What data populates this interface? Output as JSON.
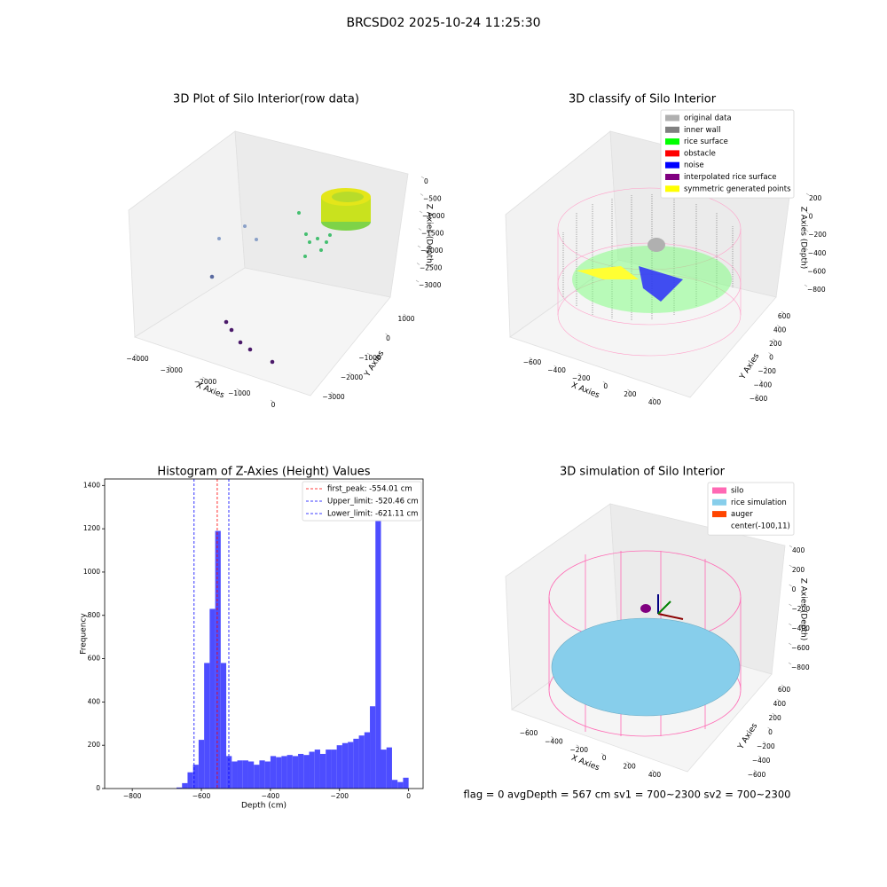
{
  "title": "BRCSD02 2025-10-24 11:25:30",
  "footer": "flag = 0     avgDepth = 567 cm  sv1 = 700~2300  sv2 = 700~2300",
  "chart_data": [
    {
      "type": "3d",
      "title": "3D Plot of Silo Interior(row data)",
      "xlabel": "X Axies",
      "ylabel": "Y Axies",
      "zlabel": "Z Axies (Depth)",
      "xticks": [
        {
          "value": -4000,
          "label": "−4000"
        },
        {
          "value": -3000,
          "label": "−3000"
        },
        {
          "value": -2000,
          "label": "−2000"
        },
        {
          "value": -1000,
          "label": "−1000"
        },
        0
      ],
      "yticks": [
        {
          "value": -3000,
          "label": "−3000"
        },
        {
          "value": -2000,
          "label": "−2000"
        },
        {
          "value": -1000,
          "label": "−1000"
        },
        0,
        1000
      ],
      "zticks": [
        0,
        {
          "value": -500,
          "label": "−500"
        },
        {
          "value": -1000,
          "label": "−1000"
        },
        {
          "value": -1500,
          "label": "−1500"
        },
        {
          "value": -2000,
          "label": "−2000"
        },
        {
          "value": -2500,
          "label": "−2500"
        },
        {
          "value": -3000,
          "label": "−3000"
        }
      ]
    },
    {
      "type": "3d",
      "title": "3D classify of Silo Interior",
      "xlabel": "X Axies",
      "ylabel": "Y Axies",
      "zlabel": "Z Axies (Depth)",
      "xticks": [
        {
          "value": -600,
          "label": "−600"
        },
        {
          "value": -400,
          "label": "−400"
        },
        {
          "value": -200,
          "label": "−200"
        },
        0,
        200,
        400
      ],
      "yticks": [
        {
          "value": -600,
          "label": "−600"
        },
        {
          "value": -400,
          "label": "−400"
        },
        {
          "value": -200,
          "label": "−200"
        },
        0,
        200,
        400,
        600
      ],
      "zticks": [
        200,
        0,
        {
          "value": -200,
          "label": "−200"
        },
        {
          "value": -400,
          "label": "−400"
        },
        {
          "value": -600,
          "label": "−600"
        },
        {
          "value": -800,
          "label": "−800"
        }
      ],
      "legend": [
        {
          "name": "original data",
          "color": "#b0b0b0"
        },
        {
          "name": "inner wall",
          "color": "#808080"
        },
        {
          "name": "rice surface",
          "color": "#00ff00"
        },
        {
          "name": "obstacle",
          "color": "#ff0000"
        },
        {
          "name": "noise",
          "color": "#0000ff"
        },
        {
          "name": "interpolated rice surface",
          "color": "#800080"
        },
        {
          "name": "symmetric generated points",
          "color": "#ffff00"
        }
      ]
    },
    {
      "type": "histogram",
      "title": "Histogram of Z-Axies (Height) Values",
      "xlabel": "Depth (cm)",
      "ylabel": "Frequency",
      "color": "#4d4dff",
      "bins": [
        -672,
        -656,
        -640,
        -624,
        -608,
        -592,
        -576,
        -560,
        -544,
        -528,
        -512,
        -496,
        -480,
        -464,
        -448,
        -432,
        -416,
        -400,
        -384,
        -368,
        -352,
        -336,
        -320,
        -304,
        -288,
        -272,
        -256,
        -240,
        -224,
        -208,
        -192,
        -176,
        -160,
        -144,
        -128,
        -112,
        -96,
        -80,
        -64,
        -48,
        -32,
        -16,
        0
      ],
      "counts": [
        5,
        25,
        75,
        110,
        225,
        580,
        830,
        1190,
        580,
        150,
        125,
        130,
        130,
        125,
        110,
        130,
        125,
        150,
        145,
        150,
        155,
        150,
        160,
        155,
        170,
        180,
        160,
        180,
        180,
        200,
        210,
        215,
        230,
        245,
        260,
        380,
        1350,
        180,
        190,
        40,
        30,
        50
      ],
      "xlim": [
        -880,
        42
      ],
      "ylim": [
        0,
        1430
      ],
      "xticks": [
        {
          "value": -800,
          "label": "−800"
        },
        {
          "value": -600,
          "label": "−600"
        },
        {
          "value": -400,
          "label": "−400"
        },
        {
          "value": -200,
          "label": "−200"
        },
        0
      ],
      "yticks": [
        0,
        200,
        400,
        600,
        800,
        1000,
        1200,
        1400
      ],
      "vlines": [
        {
          "name": "first_peak: -554.01 cm",
          "value": -554.01,
          "color": "#ff0000"
        },
        {
          "name": "Upper_limit: -520.46 cm",
          "value": -520.46,
          "color": "#0000ff"
        },
        {
          "name": "Lower_limit: -621.11 cm",
          "value": -621.11,
          "color": "#0000ff"
        }
      ]
    },
    {
      "type": "3d",
      "title": "3D simulation of Silo Interior",
      "xlabel": "X Axies",
      "ylabel": "Y Axies",
      "zlabel": "Z Axies (Depth)",
      "xticks": [
        {
          "value": -600,
          "label": "−600"
        },
        {
          "value": -400,
          "label": "−400"
        },
        {
          "value": -200,
          "label": "−200"
        },
        0,
        200,
        400
      ],
      "yticks": [
        {
          "value": -600,
          "label": "−600"
        },
        {
          "value": -400,
          "label": "−400"
        },
        {
          "value": -200,
          "label": "−200"
        },
        0,
        200,
        400,
        600
      ],
      "zticks": [
        400,
        200,
        0,
        {
          "value": -200,
          "label": "−200"
        },
        {
          "value": -400,
          "label": "−400"
        },
        {
          "value": -600,
          "label": "−600"
        },
        {
          "value": -800,
          "label": "−800"
        }
      ],
      "legend": [
        {
          "name": "silo",
          "color": "#ff69b4"
        },
        {
          "name": "rice simulation",
          "color": "#87ceeb"
        },
        {
          "name": "auger",
          "color": "#ff4500"
        },
        {
          "name": "center(-100,11)",
          "color": "#ffffff"
        }
      ]
    }
  ]
}
